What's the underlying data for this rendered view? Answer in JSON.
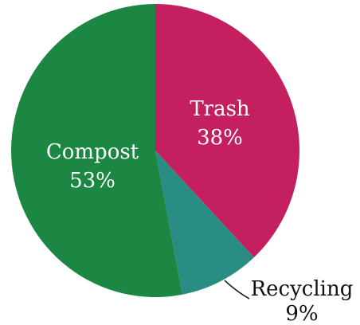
{
  "chart_data": {
    "type": "pie",
    "slices": [
      {
        "key": "trash",
        "label": "Trash",
        "value": 38,
        "value_label": "38%",
        "color": "#C41F5F"
      },
      {
        "key": "recycling",
        "label": "Recycling",
        "value": 9,
        "value_label": "9%",
        "color": "#2A8D84"
      },
      {
        "key": "compost",
        "label": "Compost",
        "value": 53,
        "value_label": "53%",
        "color": "#1C8643"
      }
    ],
    "start_angle": "12 o'clock",
    "direction": "clockwise",
    "recycling_label_placement": "outside with leader line",
    "legend": "none"
  }
}
